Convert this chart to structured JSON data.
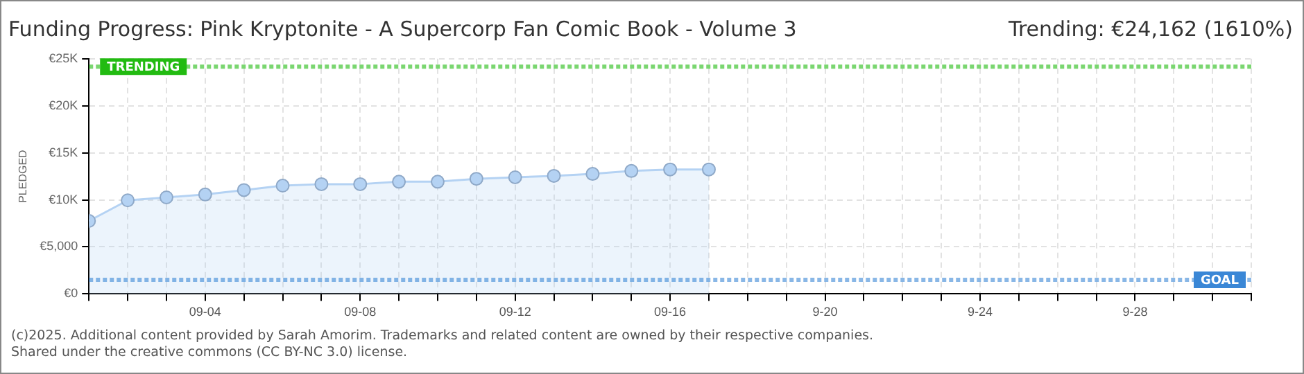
{
  "chart_data": {
    "type": "area",
    "title": "Funding Progress: Pink Kryptonite - A Supercorp Fan Comic Book - Volume 3",
    "subtitle": "Trending: €24,162 (1610%)",
    "ylabel": "PLEDGED",
    "x": [
      "--09-01",
      "--09-02",
      "--09-03",
      "--09-04",
      "--09-05",
      "--09-06",
      "--09-07",
      "--09-08",
      "--09-09",
      "--09-10",
      "--09-11",
      "--09-12",
      "--09-13",
      "--09-14",
      "--09-15",
      "--09-16",
      "--09-17"
    ],
    "series": [
      {
        "color": "#b4d2f3",
        "values": [
          7760,
          9950,
          10260,
          10570,
          11040,
          11510,
          11670,
          11670,
          11930,
          11930,
          12240,
          12400,
          12550,
          12760,
          13070,
          13230,
          13230
        ]
      }
    ],
    "xlim": [
      "--09-01",
      "--10-01"
    ],
    "xticks": [
      {
        "value": "--09-01",
        "label": null
      },
      {
        "value": "--09-02",
        "label": null
      },
      {
        "value": "--09-03",
        "label": null
      },
      {
        "value": "--09-04",
        "label": "09-04"
      },
      {
        "value": "--09-05",
        "label": null
      },
      {
        "value": "--09-06",
        "label": null
      },
      {
        "value": "--09-07",
        "label": null
      },
      {
        "value": "--09-08",
        "label": "09-08"
      },
      {
        "value": "--09-09",
        "label": null
      },
      {
        "value": "--09-10",
        "label": null
      },
      {
        "value": "--09-11",
        "label": null
      },
      {
        "value": "--09-12",
        "label": "09-12"
      },
      {
        "value": "--09-13",
        "label": null
      },
      {
        "value": "--09-14",
        "label": null
      },
      {
        "value": "--09-15",
        "label": null
      },
      {
        "value": "--09-16",
        "label": "09-16"
      },
      {
        "value": "--09-17",
        "label": null
      },
      {
        "value": "--09-18",
        "label": null
      },
      {
        "value": "--09-19",
        "label": null
      },
      {
        "value": "--09-20",
        "label": "9-20"
      },
      {
        "value": "--09-21",
        "label": null
      },
      {
        "value": "--09-22",
        "label": null
      },
      {
        "value": "--09-23",
        "label": null
      },
      {
        "value": "--09-24",
        "label": "9-24"
      },
      {
        "value": "--09-25",
        "label": null
      },
      {
        "value": "--09-26",
        "label": null
      },
      {
        "value": "--09-27",
        "label": null
      },
      {
        "value": "--09-28",
        "label": "9-28"
      },
      {
        "value": "--09-29",
        "label": null
      },
      {
        "value": "--09-30",
        "label": null
      },
      {
        "value": "--10-01",
        "label": null
      }
    ],
    "ylim": [
      0,
      25000
    ],
    "yticks": [
      {
        "value": 0,
        "label": "€0"
      },
      {
        "value": 5000,
        "label": "€5,000"
      },
      {
        "value": 10000,
        "label": "€10K"
      },
      {
        "value": 15000,
        "label": "€15K"
      },
      {
        "value": 20000,
        "label": "€20K"
      },
      {
        "value": 25000,
        "label": "€25K"
      }
    ],
    "ref_lines": [
      {
        "axis": "y",
        "value": 24162,
        "label": "TRENDING",
        "color": "#22bb11",
        "line_style": "dotted"
      },
      {
        "axis": "y",
        "value": 1500,
        "label": "GOAL",
        "color": "#3a87d6",
        "line_style": "dotted"
      }
    ],
    "grid": true,
    "marker": "circle",
    "legend": false,
    "annotations": [
      "(c)2025. Additional content provided by Sarah Amorim. Trademarks and related content are owned by their respective companies.",
      "Shared under the creative commons (CC BY-NC 3.0) license."
    ]
  }
}
